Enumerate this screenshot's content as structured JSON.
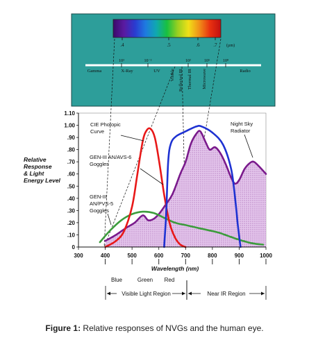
{
  "spectrum": {
    "visible_scale_ticks": [
      ".4",
      ".5",
      ".6",
      ".7"
    ],
    "visible_scale_unit": "(µm)",
    "wavelength_exponents": [
      "10³",
      "10⁻²",
      "10²",
      "10⁵",
      "10⁸"
    ],
    "bands": [
      "Gamma",
      "X-Ray",
      "UV",
      "Visible",
      "Reflected IR",
      "Thermal IR",
      "Microwave",
      "Radio"
    ],
    "colors": {
      "panel": "#2d9e9a",
      "rainbow": [
        "#3a0a6a",
        "#5a1aa0",
        "#2a3ad0",
        "#1e7ae0",
        "#10a8b0",
        "#18c040",
        "#9ad020",
        "#f0e018",
        "#f09018",
        "#e83010",
        "#c01010"
      ]
    }
  },
  "chart_data": {
    "type": "line",
    "xlabel": "Wavelength (nm)",
    "ylabel": "Relative Response & Light Energy Level",
    "ylabel_lines": [
      "Relative",
      "Response",
      "& Light",
      "Energy Level"
    ],
    "xlim": [
      300,
      1000
    ],
    "ylim": [
      0,
      1.1
    ],
    "x_ticks": [
      "300",
      "400",
      "500",
      "600",
      "700",
      "800",
      "900",
      "1000"
    ],
    "y_ticks": [
      "0",
      ".10",
      ".20",
      ".30",
      ".40",
      ".50",
      ".60",
      ".70",
      ".80",
      ".90",
      "1.00",
      "1.10"
    ],
    "grid": false,
    "series": [
      {
        "name": "CIE Photopic Curve",
        "name_lines": [
          "CIE Photopic",
          "Curve"
        ],
        "color": "#e81818",
        "points": [
          [
            400,
            0.0
          ],
          [
            440,
            0.05
          ],
          [
            470,
            0.13
          ],
          [
            500,
            0.33
          ],
          [
            520,
            0.6
          ],
          [
            540,
            0.87
          ],
          [
            555,
            0.96
          ],
          [
            570,
            0.97
          ],
          [
            585,
            0.9
          ],
          [
            600,
            0.72
          ],
          [
            620,
            0.43
          ],
          [
            640,
            0.2
          ],
          [
            660,
            0.08
          ],
          [
            680,
            0.02
          ],
          [
            700,
            0.0
          ]
        ]
      },
      {
        "name": "GEN-III AN/AVS-6 Goggles",
        "name_lines": [
          "GEN-III AN/AVS-6",
          "Goggles"
        ],
        "color": "#1e32d2",
        "points": [
          [
            620,
            0.0
          ],
          [
            628,
            0.3
          ],
          [
            635,
            0.7
          ],
          [
            645,
            0.85
          ],
          [
            665,
            0.91
          ],
          [
            700,
            0.95
          ],
          [
            740,
            0.99
          ],
          [
            760,
            0.99
          ],
          [
            800,
            0.94
          ],
          [
            840,
            0.84
          ],
          [
            870,
            0.64
          ],
          [
            885,
            0.4
          ],
          [
            895,
            0.18
          ],
          [
            905,
            0.0
          ]
        ]
      },
      {
        "name": "GEN-III AN/PVS-5 Goggles",
        "name_lines": [
          "GEN-III",
          "AN/PVS-5",
          "Goggles"
        ],
        "color": "#3c9c3c",
        "points": [
          [
            380,
            0.04
          ],
          [
            420,
            0.14
          ],
          [
            460,
            0.22
          ],
          [
            500,
            0.27
          ],
          [
            540,
            0.29
          ],
          [
            580,
            0.28
          ],
          [
            620,
            0.24
          ],
          [
            660,
            0.2
          ],
          [
            700,
            0.18
          ],
          [
            760,
            0.15
          ],
          [
            820,
            0.12
          ],
          [
            860,
            0.09
          ],
          [
            900,
            0.06
          ],
          [
            950,
            0.03
          ],
          [
            990,
            0.02
          ]
        ]
      },
      {
        "name": "Night Sky Radiator",
        "name_lines": [
          "Night Sky",
          "Radiator"
        ],
        "color": "#7a1a8c",
        "fill": "#e4c6ec",
        "points": [
          [
            400,
            0.05
          ],
          [
            440,
            0.1
          ],
          [
            480,
            0.16
          ],
          [
            510,
            0.2
          ],
          [
            540,
            0.26
          ],
          [
            560,
            0.22
          ],
          [
            580,
            0.23
          ],
          [
            600,
            0.27
          ],
          [
            620,
            0.33
          ],
          [
            650,
            0.43
          ],
          [
            680,
            0.6
          ],
          [
            700,
            0.7
          ],
          [
            720,
            0.85
          ],
          [
            740,
            0.93
          ],
          [
            755,
            0.95
          ],
          [
            775,
            0.86
          ],
          [
            790,
            0.8
          ],
          [
            810,
            0.82
          ],
          [
            830,
            0.77
          ],
          [
            850,
            0.68
          ],
          [
            870,
            0.57
          ],
          [
            885,
            0.52
          ],
          [
            900,
            0.55
          ],
          [
            920,
            0.64
          ],
          [
            940,
            0.69
          ],
          [
            955,
            0.7
          ],
          [
            975,
            0.66
          ],
          [
            1000,
            0.6
          ]
        ]
      }
    ]
  },
  "regions": {
    "colors": [
      "Blue",
      "Green",
      "Red"
    ],
    "visible": "Visible Light Region",
    "near_ir": "Near IR Region"
  },
  "caption": {
    "label": "Figure 1:",
    "text": " Relative responses of NVGs and the human eye."
  }
}
